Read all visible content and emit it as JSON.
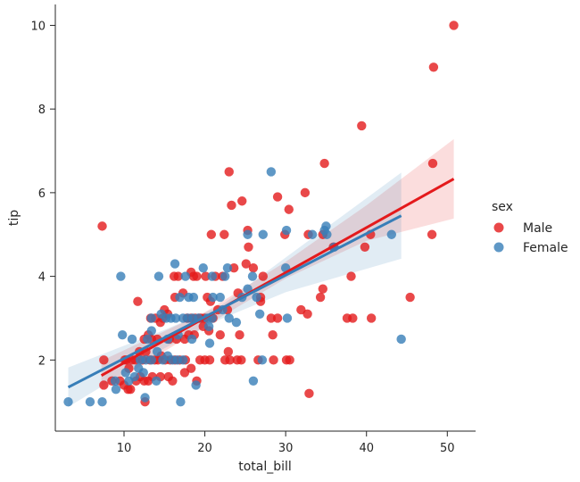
{
  "chart_data": {
    "type": "scatter",
    "xlabel": "total_bill",
    "ylabel": "tip",
    "xlim": [
      1.5,
      53.5
    ],
    "ylim": [
      0.3,
      10.5
    ],
    "x_ticks": [
      10,
      20,
      30,
      40,
      50
    ],
    "y_ticks": [
      2,
      4,
      6,
      8,
      10
    ],
    "grid": false,
    "legend": {
      "title": "sex",
      "placement": "right",
      "entries": [
        "Male",
        "Female"
      ]
    },
    "series": [
      {
        "name": "Male",
        "color": "#e41a1c",
        "points": [
          [
            50.8,
            10.0
          ],
          [
            48.3,
            9.0
          ],
          [
            39.4,
            7.6
          ],
          [
            48.2,
            6.7
          ],
          [
            34.8,
            6.7
          ],
          [
            23.0,
            6.5
          ],
          [
            32.4,
            6.0
          ],
          [
            29.0,
            5.9
          ],
          [
            24.6,
            5.8
          ],
          [
            23.3,
            5.7
          ],
          [
            30.4,
            5.6
          ],
          [
            25.3,
            5.1
          ],
          [
            7.3,
            5.2
          ],
          [
            20.8,
            5.0
          ],
          [
            22.4,
            5.0
          ],
          [
            29.9,
            5.0
          ],
          [
            32.8,
            5.0
          ],
          [
            48.1,
            5.0
          ],
          [
            25.4,
            4.7
          ],
          [
            35.9,
            4.7
          ],
          [
            39.8,
            4.7
          ],
          [
            34.6,
            5.0
          ],
          [
            40.5,
            5.0
          ],
          [
            25.1,
            4.3
          ],
          [
            23.6,
            4.2
          ],
          [
            26.0,
            4.2
          ],
          [
            21.3,
            4.0
          ],
          [
            22.2,
            4.0
          ],
          [
            16.2,
            4.0
          ],
          [
            16.7,
            4.0
          ],
          [
            18.3,
            4.1
          ],
          [
            18.6,
            4.0
          ],
          [
            19.0,
            4.0
          ],
          [
            20.1,
            4.0
          ],
          [
            27.2,
            4.0
          ],
          [
            38.1,
            4.0
          ],
          [
            17.3,
            3.6
          ],
          [
            24.1,
            3.6
          ],
          [
            34.6,
            3.7
          ],
          [
            34.3,
            3.5
          ],
          [
            45.4,
            3.5
          ],
          [
            26.9,
            3.5
          ],
          [
            16.3,
            3.5
          ],
          [
            20.3,
            3.5
          ],
          [
            20.7,
            3.4
          ],
          [
            11.7,
            3.4
          ],
          [
            13.3,
            3.0
          ],
          [
            13.9,
            3.0
          ],
          [
            14.8,
            3.0
          ],
          [
            17.8,
            3.0
          ],
          [
            18.3,
            3.0
          ],
          [
            18.8,
            3.0
          ],
          [
            19.3,
            3.0
          ],
          [
            19.5,
            3.0
          ],
          [
            20.0,
            3.0
          ],
          [
            21.0,
            3.0
          ],
          [
            21.6,
            3.2
          ],
          [
            22.8,
            3.2
          ],
          [
            26.9,
            3.4
          ],
          [
            28.2,
            3.0
          ],
          [
            29.0,
            3.0
          ],
          [
            31.9,
            3.2
          ],
          [
            32.7,
            3.1
          ],
          [
            37.6,
            3.0
          ],
          [
            38.3,
            3.0
          ],
          [
            40.6,
            3.0
          ],
          [
            15.0,
            3.2
          ],
          [
            15.4,
            3.1
          ],
          [
            14.5,
            2.9
          ],
          [
            12.5,
            2.5
          ],
          [
            13.0,
            2.6
          ],
          [
            13.4,
            2.5
          ],
          [
            14.1,
            2.5
          ],
          [
            15.6,
            2.5
          ],
          [
            16.5,
            2.5
          ],
          [
            17.5,
            2.5
          ],
          [
            18.0,
            2.6
          ],
          [
            18.7,
            2.6
          ],
          [
            19.8,
            2.8
          ],
          [
            20.5,
            2.7
          ],
          [
            21.9,
            2.6
          ],
          [
            24.3,
            2.6
          ],
          [
            28.4,
            2.6
          ],
          [
            10.1,
            2.0
          ],
          [
            10.3,
            2.0
          ],
          [
            10.6,
            1.8
          ],
          [
            11.0,
            2.0
          ],
          [
            11.4,
            2.0
          ],
          [
            11.9,
            2.2
          ],
          [
            12.3,
            2.0
          ],
          [
            12.7,
            2.2
          ],
          [
            13.2,
            2.0
          ],
          [
            13.8,
            2.0
          ],
          [
            14.2,
            2.0
          ],
          [
            14.6,
            2.1
          ],
          [
            15.1,
            2.0
          ],
          [
            15.7,
            2.0
          ],
          [
            16.3,
            2.0
          ],
          [
            16.9,
            2.0
          ],
          [
            17.6,
            2.0
          ],
          [
            18.3,
            1.8
          ],
          [
            19.4,
            2.0
          ],
          [
            20.0,
            2.0
          ],
          [
            20.6,
            2.0
          ],
          [
            22.5,
            2.0
          ],
          [
            23.1,
            2.0
          ],
          [
            24.0,
            2.0
          ],
          [
            24.5,
            2.0
          ],
          [
            28.5,
            2.0
          ],
          [
            30.1,
            2.0
          ],
          [
            30.5,
            2.0
          ],
          [
            7.5,
            2.0
          ],
          [
            7.5,
            1.4
          ],
          [
            8.5,
            1.5
          ],
          [
            9.5,
            1.5
          ],
          [
            10.0,
            1.4
          ],
          [
            10.5,
            1.3
          ],
          [
            10.8,
            1.3
          ],
          [
            11.5,
            1.5
          ],
          [
            12.0,
            1.6
          ],
          [
            12.5,
            1.5
          ],
          [
            13.0,
            1.5
          ],
          [
            13.5,
            1.6
          ],
          [
            14.5,
            1.6
          ],
          [
            15.5,
            1.6
          ],
          [
            16.0,
            1.5
          ],
          [
            17.5,
            1.7
          ],
          [
            19.0,
            1.5
          ],
          [
            22.9,
            2.2
          ],
          [
            12.6,
            1.0
          ],
          [
            32.9,
            1.2
          ],
          [
            26.6,
            2.0
          ]
        ]
      },
      {
        "name": "Female",
        "color": "#377eb8",
        "points": [
          [
            28.2,
            6.5
          ],
          [
            30.1,
            5.1
          ],
          [
            35.0,
            5.2
          ],
          [
            35.1,
            5.0
          ],
          [
            27.2,
            5.0
          ],
          [
            34.8,
            5.1
          ],
          [
            43.1,
            5.0
          ],
          [
            25.3,
            5.0
          ],
          [
            33.3,
            5.0
          ],
          [
            36.0,
            4.7
          ],
          [
            25.9,
            4.0
          ],
          [
            30.0,
            4.2
          ],
          [
            22.8,
            4.2
          ],
          [
            16.3,
            4.3
          ],
          [
            19.8,
            4.2
          ],
          [
            9.6,
            4.0
          ],
          [
            14.3,
            4.0
          ],
          [
            17.6,
            4.0
          ],
          [
            20.9,
            4.0
          ],
          [
            22.5,
            4.0
          ],
          [
            16.9,
            3.5
          ],
          [
            18.0,
            3.5
          ],
          [
            18.6,
            3.5
          ],
          [
            21.0,
            3.5
          ],
          [
            21.9,
            3.5
          ],
          [
            24.6,
            3.5
          ],
          [
            25.3,
            3.7
          ],
          [
            26.4,
            3.5
          ],
          [
            13.4,
            3.0
          ],
          [
            14.6,
            3.1
          ],
          [
            15.2,
            3.0
          ],
          [
            15.8,
            3.0
          ],
          [
            16.4,
            3.0
          ],
          [
            17.3,
            3.0
          ],
          [
            17.9,
            3.0
          ],
          [
            18.5,
            3.0
          ],
          [
            19.2,
            3.0
          ],
          [
            20.3,
            3.0
          ],
          [
            20.9,
            3.0
          ],
          [
            22.2,
            3.2
          ],
          [
            23.0,
            3.0
          ],
          [
            26.8,
            3.1
          ],
          [
            30.2,
            3.0
          ],
          [
            20.5,
            2.8
          ],
          [
            23.9,
            2.9
          ],
          [
            9.8,
            2.6
          ],
          [
            12.9,
            2.5
          ],
          [
            13.4,
            2.7
          ],
          [
            15.4,
            2.5
          ],
          [
            16.7,
            2.6
          ],
          [
            18.4,
            2.5
          ],
          [
            20.6,
            2.4
          ],
          [
            11.0,
            2.5
          ],
          [
            12.0,
            2.0
          ],
          [
            12.7,
            2.0
          ],
          [
            13.4,
            2.0
          ],
          [
            14.1,
            2.2
          ],
          [
            14.8,
            2.0
          ],
          [
            15.4,
            2.1
          ],
          [
            16.0,
            2.0
          ],
          [
            16.6,
            2.0
          ],
          [
            17.3,
            2.0
          ],
          [
            10.2,
            1.7
          ],
          [
            10.6,
            1.5
          ],
          [
            11.3,
            1.6
          ],
          [
            11.8,
            1.8
          ],
          [
            12.4,
            1.7
          ],
          [
            14.0,
            1.5
          ],
          [
            8.9,
            1.5
          ],
          [
            9.0,
            1.3
          ],
          [
            12.6,
            1.1
          ],
          [
            18.9,
            1.4
          ],
          [
            26.0,
            1.5
          ],
          [
            27.1,
            2.0
          ],
          [
            44.3,
            2.5
          ],
          [
            3.1,
            1.0
          ],
          [
            5.8,
            1.0
          ],
          [
            7.3,
            1.0
          ],
          [
            17.0,
            1.0
          ]
        ]
      }
    ],
    "regression": [
      {
        "name": "Male",
        "color": "#e41a1c",
        "x_range": [
          7.2,
          50.8
        ],
        "y_start": 1.63,
        "y_end": 6.33,
        "ci_upper": [
          [
            7.2,
            1.98
          ],
          [
            20,
            3.14
          ],
          [
            30,
            4.35
          ],
          [
            40,
            5.7
          ],
          [
            50.8,
            7.28
          ]
        ],
        "ci_lower": [
          [
            7.2,
            1.28
          ],
          [
            20,
            2.8
          ],
          [
            30,
            3.95
          ],
          [
            40,
            4.85
          ],
          [
            50.8,
            5.38
          ]
        ]
      },
      {
        "name": "Female",
        "color": "#377eb8",
        "x_range": [
          3.1,
          44.3
        ],
        "y_start": 1.35,
        "y_end": 5.45,
        "ci_upper": [
          [
            3.1,
            1.82
          ],
          [
            15,
            2.72
          ],
          [
            22,
            3.3
          ],
          [
            30,
            4.45
          ],
          [
            44.3,
            6.48
          ]
        ],
        "ci_lower": [
          [
            3.1,
            0.88
          ],
          [
            15,
            2.28
          ],
          [
            22,
            2.98
          ],
          [
            30,
            3.62
          ],
          [
            44.3,
            4.42
          ]
        ]
      }
    ]
  }
}
